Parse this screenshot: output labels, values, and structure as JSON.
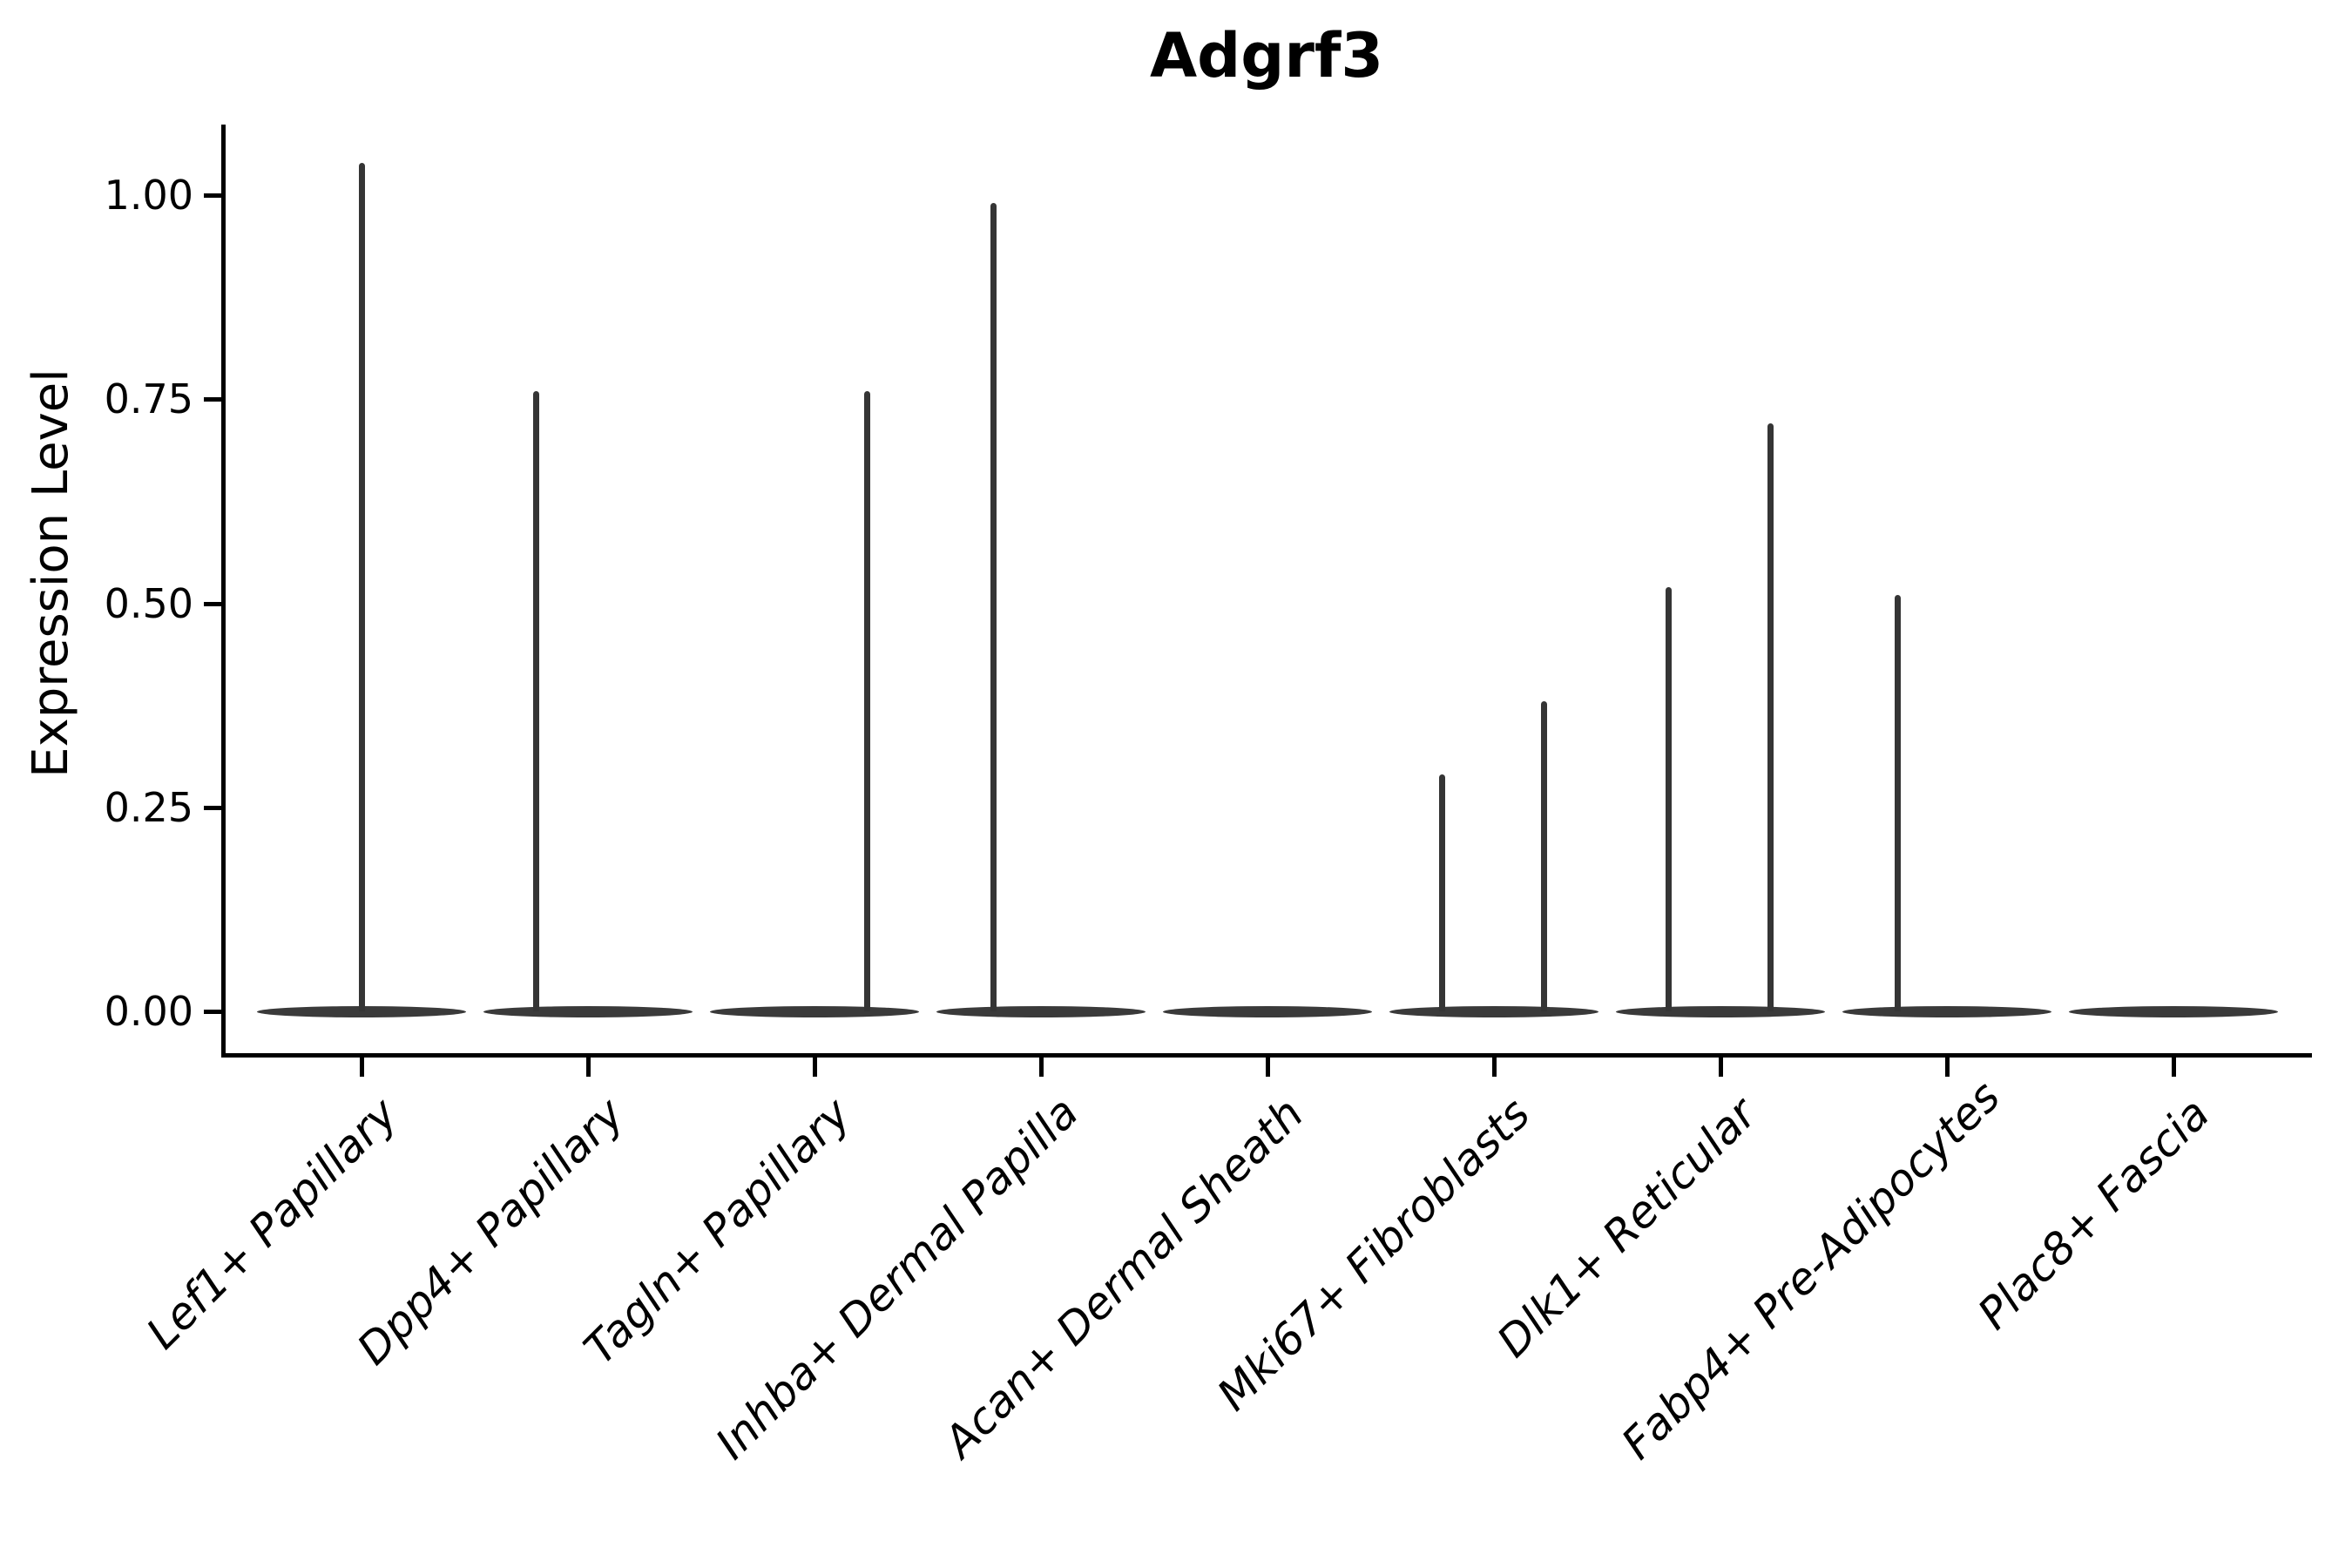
{
  "title": "Adgrf3",
  "y_axis": {
    "label": "Expression Level",
    "ticks": [
      {
        "label": "1.00",
        "value": 1.0
      },
      {
        "label": "0.75",
        "value": 0.75
      },
      {
        "label": "0.50",
        "value": 0.5
      },
      {
        "label": "0.25",
        "value": 0.25
      },
      {
        "label": "0.00",
        "value": 0.0
      }
    ]
  },
  "chart_data": {
    "type": "violin",
    "title": "Adgrf3",
    "xlabel": "",
    "ylabel": "Expression Level",
    "ylim": [
      -0.05,
      1.09
    ],
    "grid": false,
    "legend_position": "none",
    "x_tick_rotation_deg": 45,
    "categories": [
      "Lef1+ Papillary",
      "Dpp4+ Papillary",
      "Tagln+ Papillary",
      "Inhba+ Dermal Papilla",
      "Acan+ Dermal Sheath",
      "Mki67+ Fibroblasts",
      "Dlk1+ Reticular",
      "Fabp4+ Pre-Adipocytes",
      "Plac8+ Fascia"
    ],
    "violins": [
      {
        "category": "Lef1+ Papillary",
        "baseline_value": 0,
        "spikes": [
          {
            "value": 1.04,
            "offset_frac": 0.0
          }
        ]
      },
      {
        "category": "Dpp4+ Papillary",
        "baseline_value": 0,
        "spikes": [
          {
            "value": 0.76,
            "offset_frac": -0.23
          }
        ]
      },
      {
        "category": "Tagln+ Papillary",
        "baseline_value": 0,
        "spikes": [
          {
            "value": 0.76,
            "offset_frac": 0.23
          }
        ]
      },
      {
        "category": "Inhba+ Dermal Papilla",
        "baseline_value": 0,
        "spikes": [
          {
            "value": 0.99,
            "offset_frac": -0.21
          }
        ]
      },
      {
        "category": "Acan+ Dermal Sheath",
        "baseline_value": 0,
        "spikes": []
      },
      {
        "category": "Mki67+ Fibroblasts",
        "baseline_value": 0,
        "spikes": [
          {
            "value": 0.29,
            "offset_frac": -0.23
          },
          {
            "value": 0.38,
            "offset_frac": 0.22
          }
        ]
      },
      {
        "category": "Dlk1+ Reticular",
        "baseline_value": 0,
        "spikes": [
          {
            "value": 0.52,
            "offset_frac": -0.23
          },
          {
            "value": 0.72,
            "offset_frac": 0.22
          }
        ]
      },
      {
        "category": "Fabp4+ Pre-Adipocytes",
        "baseline_value": 0,
        "spikes": [
          {
            "value": 0.51,
            "offset_frac": -0.22
          }
        ]
      },
      {
        "category": "Plac8+ Fascia",
        "baseline_value": 0,
        "spikes": []
      }
    ],
    "colors": {
      "violin_fill": "#3a3a3a",
      "spike": "#353535",
      "axis": "#000000",
      "text": "#000000",
      "background": "#ffffff"
    }
  }
}
